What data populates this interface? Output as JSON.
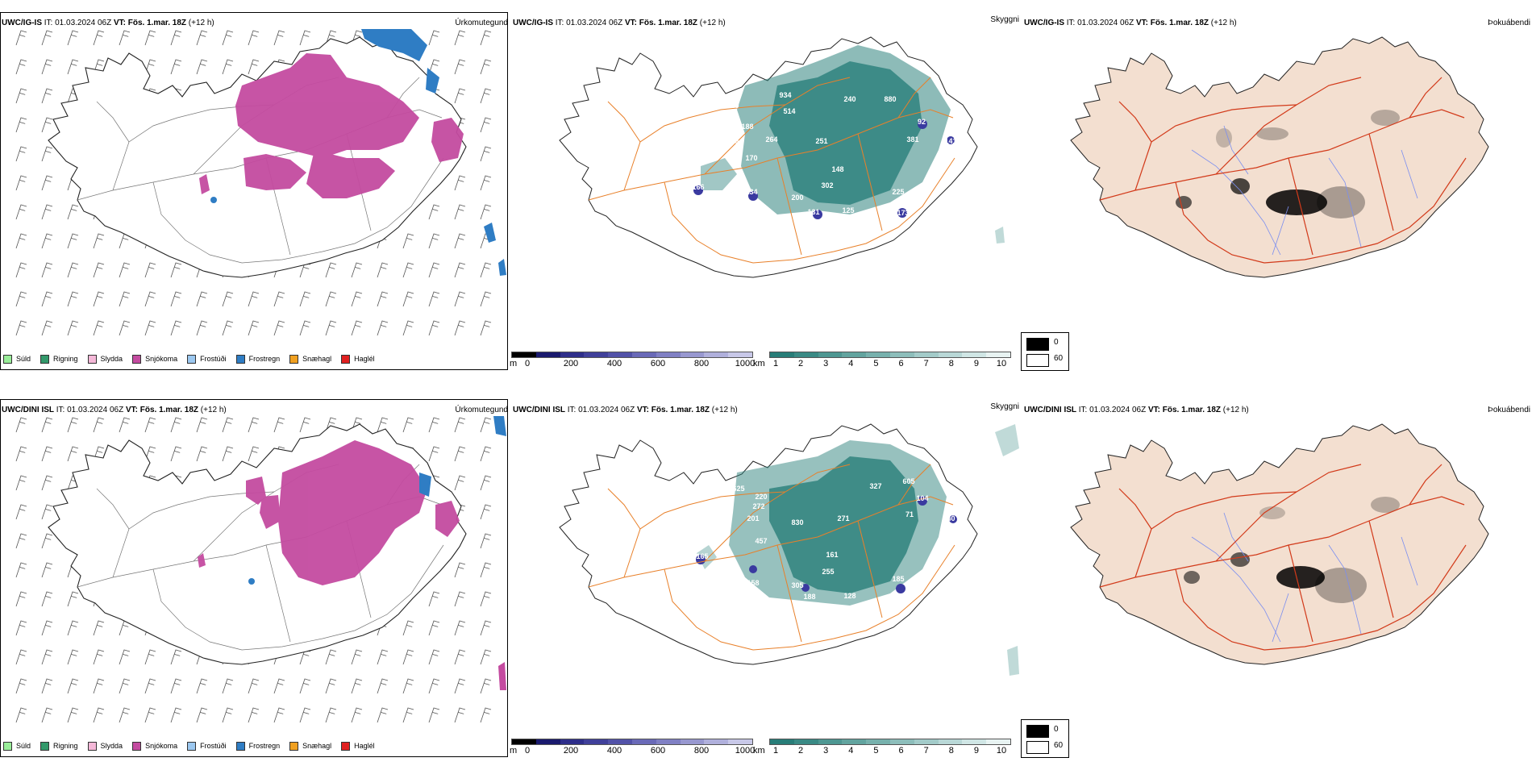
{
  "rows": [
    {
      "id": "ig-is",
      "model": "UWC/IG-IS",
      "it": "IT: 01.03.2024 06Z",
      "vt_label": "VT:",
      "vt": "Fös. 1.mar. 18Z",
      "lead": "(+12 h)",
      "panel_titles": [
        "Úrkomutegund",
        "Skyggni",
        "Þokuábendi"
      ],
      "visibility_labels": [
        {
          "t": "650"
        },
        {
          "t": "934"
        },
        {
          "t": "514"
        },
        {
          "t": "203"
        },
        {
          "t": "188"
        },
        {
          "t": "304"
        },
        {
          "t": "264"
        },
        {
          "t": "170"
        },
        {
          "t": "251"
        },
        {
          "t": "240"
        },
        {
          "t": "880"
        },
        {
          "t": "92"
        },
        {
          "t": "381"
        },
        {
          "t": "141"
        },
        {
          "t": "148"
        },
        {
          "t": "302"
        },
        {
          "t": "225"
        },
        {
          "t": "166"
        },
        {
          "t": "134"
        },
        {
          "t": "200"
        },
        {
          "t": "131"
        },
        {
          "t": "125"
        },
        {
          "t": "173"
        }
      ]
    },
    {
      "id": "dini-isl",
      "model": "UWC/DINI ISL",
      "it": "IT: 01.03.2024 06Z",
      "vt_label": "VT:",
      "vt": "Fös. 1.mar. 18Z",
      "lead": "(+12 h)",
      "panel_titles": [
        "Úrkomutegund",
        "Skyggni",
        "Þokuábendi"
      ],
      "visibility_labels": [
        {
          "t": "625"
        },
        {
          "t": "220"
        },
        {
          "t": "302"
        },
        {
          "t": "272"
        },
        {
          "t": "201"
        },
        {
          "t": "830"
        },
        {
          "t": "457"
        },
        {
          "t": "271"
        },
        {
          "t": "327"
        },
        {
          "t": "605"
        },
        {
          "t": "104"
        },
        {
          "t": "71"
        },
        {
          "t": "140"
        },
        {
          "t": "161"
        },
        {
          "t": "255"
        },
        {
          "t": "185"
        },
        {
          "t": "165"
        },
        {
          "t": "158"
        },
        {
          "t": "305"
        },
        {
          "t": "188"
        },
        {
          "t": "128"
        },
        {
          "t": "159"
        }
      ]
    }
  ],
  "precip_legend": [
    {
      "label": "Súld",
      "color": "#99ee99"
    },
    {
      "label": "Rigning",
      "color": "#33996b"
    },
    {
      "label": "Slydda",
      "color": "#f5b8d8"
    },
    {
      "label": "Snjókoma",
      "color": "#c44ba0"
    },
    {
      "label": "Frostúði",
      "color": "#9cc8f0"
    },
    {
      "label": "Frostregn",
      "color": "#2f7dc4"
    },
    {
      "label": "Snæhagl",
      "color": "#f0a020"
    },
    {
      "label": "Haglél",
      "color": "#e02020"
    }
  ],
  "visibility_m_scale": {
    "unit": "m",
    "ticks": [
      "0",
      "200",
      "400",
      "600",
      "800",
      "1000"
    ],
    "colors": [
      "#000000",
      "#1a1a6e",
      "#2e2e8a",
      "#40409a",
      "#5252a8",
      "#6a6ab8",
      "#8080c4",
      "#9898d0",
      "#b0b0dc",
      "#c8c8e8"
    ]
  },
  "visibility_km_scale": {
    "unit": "km",
    "ticks": [
      "1",
      "2",
      "3",
      "4",
      "5",
      "6",
      "7",
      "8",
      "9",
      "10"
    ],
    "colors": [
      "#287d78",
      "#3a8a85",
      "#4e9792",
      "#62a49f",
      "#77b1ad",
      "#8dbebb",
      "#a3cbc9",
      "#b9d8d7",
      "#d0e6e5",
      "#e8f3f2"
    ]
  },
  "fog_legend": [
    {
      "label": "0",
      "color": "#000000"
    },
    {
      "label": "60",
      "color": "#ffffff"
    }
  ],
  "colors": {
    "land_fog": "#f3dfd0",
    "roads_orange": "#e8802a",
    "roads_red": "#d23a1a",
    "rivers": "#7a8ef0",
    "snow": "#c44ba0",
    "freezing_rain": "#2f7dc4",
    "vis_teal": "#2f837e"
  }
}
